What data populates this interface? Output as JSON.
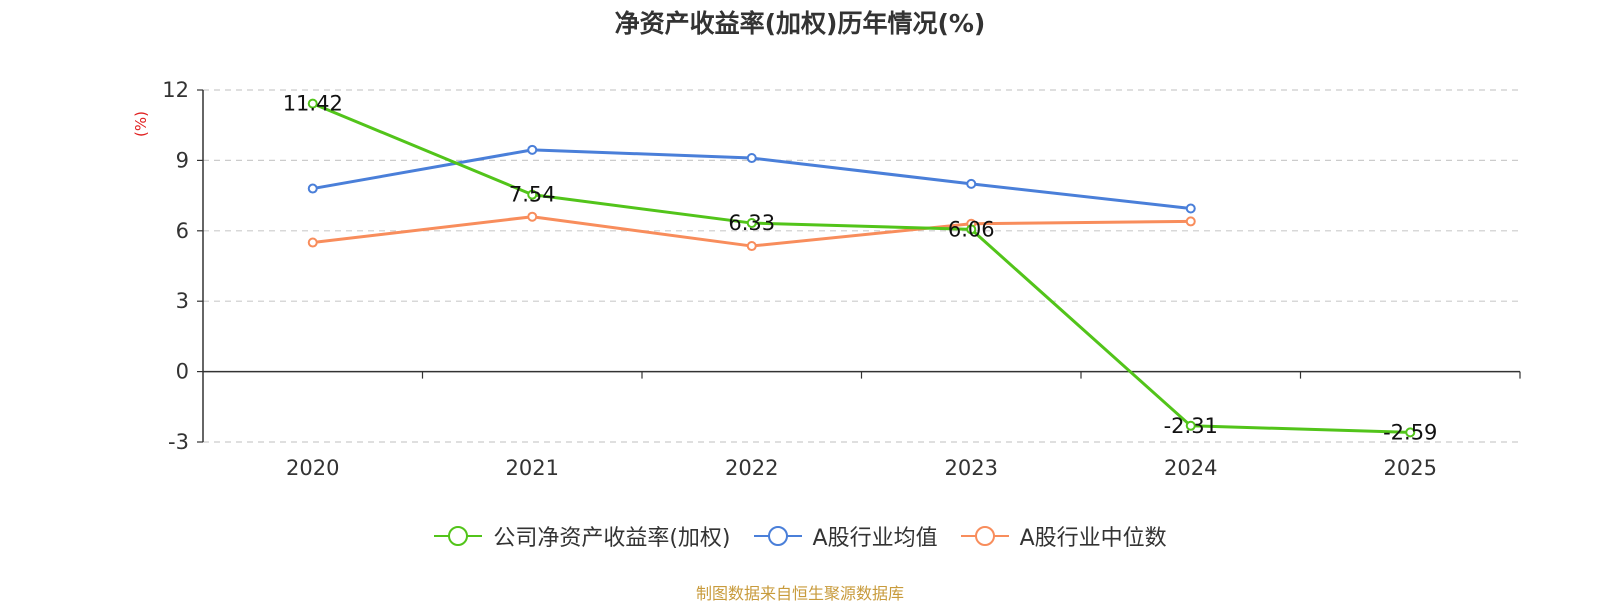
{
  "chart_data": {
    "type": "line",
    "title": "净资产收益率(加权)历年情况(%)",
    "ylabel": "(%)",
    "categories": [
      "2020",
      "2021",
      "2022",
      "2023",
      "2024",
      "2025"
    ],
    "ylim": [
      -3,
      12
    ],
    "yticks": [
      -3,
      0,
      3,
      6,
      9,
      12
    ],
    "grid": true,
    "legend_position": "bottom",
    "series": [
      {
        "name": "公司净资产收益率(加权)",
        "color": "#52c41a",
        "values": [
          11.42,
          7.54,
          6.33,
          6.06,
          -2.31,
          -2.59
        ],
        "labels": [
          "11.42",
          "7.54",
          "6.33",
          "6.06",
          "-2.31",
          "-2.59"
        ]
      },
      {
        "name": "A股行业均值",
        "color": "#4a7fd9",
        "values": [
          7.8,
          9.45,
          9.1,
          8.0,
          6.95,
          null
        ]
      },
      {
        "name": "A股行业中位数",
        "color": "#f88d5c",
        "values": [
          5.5,
          6.6,
          5.35,
          6.3,
          6.4,
          null
        ]
      }
    ]
  },
  "source": "制图数据来自恒生聚源数据库",
  "ylabel_color": "#e02020"
}
